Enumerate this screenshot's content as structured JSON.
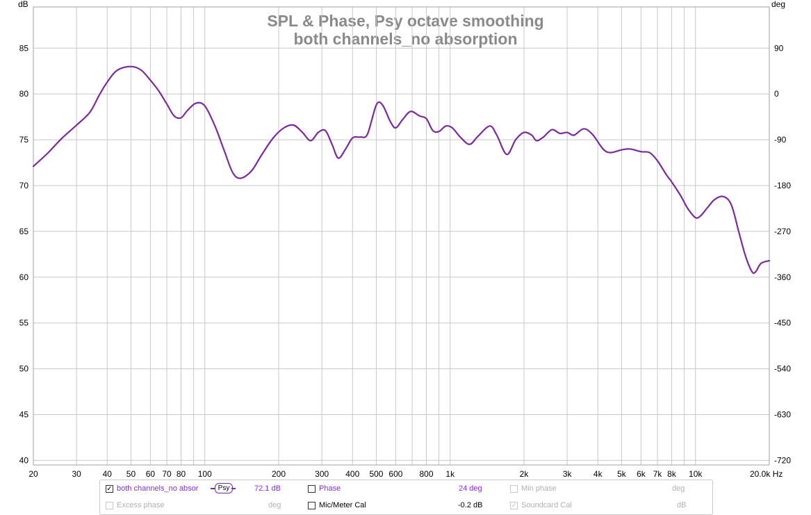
{
  "chart_data": {
    "type": "line",
    "title": "SPL & Phase, Psy octave smoothing",
    "subtitle": "both channels_no absorption",
    "ylabel_left": "dB",
    "ylabel_right": "deg",
    "xunit": "Hz",
    "xscale": "log",
    "xlim": [
      20,
      20000
    ],
    "ylim": [
      39.5,
      89.5
    ],
    "ylim_right": [
      -729,
      171
    ],
    "grid": true,
    "x_ticks": [
      {
        "v": 20,
        "label": "20"
      },
      {
        "v": 30,
        "label": "30"
      },
      {
        "v": 40,
        "label": "40"
      },
      {
        "v": 50,
        "label": "50"
      },
      {
        "v": 60,
        "label": "60"
      },
      {
        "v": 70,
        "label": "70"
      },
      {
        "v": 80,
        "label": "80"
      },
      {
        "v": 100,
        "label": "100"
      },
      {
        "v": 200,
        "label": "200"
      },
      {
        "v": 300,
        "label": "300"
      },
      {
        "v": 400,
        "label": "400"
      },
      {
        "v": 500,
        "label": "500"
      },
      {
        "v": 600,
        "label": "600"
      },
      {
        "v": 800,
        "label": "800"
      },
      {
        "v": 1000,
        "label": "1k"
      },
      {
        "v": 2000,
        "label": "2k"
      },
      {
        "v": 3000,
        "label": "3k"
      },
      {
        "v": 4000,
        "label": "4k"
      },
      {
        "v": 5000,
        "label": "5k"
      },
      {
        "v": 6000,
        "label": "6k"
      },
      {
        "v": 7000,
        "label": "7k"
      },
      {
        "v": 8000,
        "label": "8k"
      },
      {
        "v": 10000,
        "label": "10k"
      },
      {
        "v": 20000,
        "label": "20.0k Hz"
      }
    ],
    "x_minor": [
      90,
      700,
      900,
      9000
    ],
    "y_ticks": [
      40,
      45,
      50,
      55,
      60,
      65,
      70,
      75,
      80,
      85
    ],
    "y_right_ticks": [
      90,
      0,
      -90,
      -180,
      -270,
      -360,
      -450,
      -540,
      -630,
      -720
    ],
    "series": [
      {
        "name": "both channels_no absor",
        "color": "#7b2a9b",
        "points": [
          [
            20,
            72.1
          ],
          [
            23,
            73.6
          ],
          [
            26,
            75.1
          ],
          [
            30,
            76.6
          ],
          [
            34,
            78.0
          ],
          [
            37,
            79.8
          ],
          [
            40,
            81.3
          ],
          [
            44,
            82.6
          ],
          [
            50,
            83.0
          ],
          [
            55,
            82.6
          ],
          [
            60,
            81.5
          ],
          [
            65,
            80.3
          ],
          [
            70,
            78.9
          ],
          [
            75,
            77.6
          ],
          [
            80,
            77.4
          ],
          [
            85,
            78.2
          ],
          [
            92,
            79.0
          ],
          [
            100,
            78.7
          ],
          [
            110,
            76.5
          ],
          [
            120,
            73.8
          ],
          [
            130,
            71.4
          ],
          [
            140,
            70.8
          ],
          [
            155,
            71.6
          ],
          [
            170,
            73.3
          ],
          [
            190,
            75.2
          ],
          [
            210,
            76.3
          ],
          [
            230,
            76.6
          ],
          [
            250,
            75.8
          ],
          [
            270,
            74.9
          ],
          [
            290,
            75.8
          ],
          [
            310,
            76.0
          ],
          [
            330,
            74.5
          ],
          [
            350,
            73.0
          ],
          [
            375,
            74.0
          ],
          [
            400,
            75.2
          ],
          [
            430,
            75.3
          ],
          [
            460,
            75.6
          ],
          [
            500,
            78.8
          ],
          [
            530,
            78.8
          ],
          [
            570,
            77.0
          ],
          [
            600,
            76.3
          ],
          [
            640,
            77.2
          ],
          [
            690,
            78.1
          ],
          [
            750,
            77.6
          ],
          [
            800,
            77.3
          ],
          [
            850,
            76.0
          ],
          [
            900,
            75.9
          ],
          [
            960,
            76.5
          ],
          [
            1020,
            76.3
          ],
          [
            1100,
            75.3
          ],
          [
            1200,
            74.5
          ],
          [
            1300,
            75.4
          ],
          [
            1450,
            76.5
          ],
          [
            1550,
            75.5
          ],
          [
            1700,
            73.4
          ],
          [
            1850,
            75.0
          ],
          [
            2000,
            75.8
          ],
          [
            2150,
            75.5
          ],
          [
            2250,
            74.9
          ],
          [
            2400,
            75.3
          ],
          [
            2600,
            76.1
          ],
          [
            2800,
            75.7
          ],
          [
            3000,
            75.8
          ],
          [
            3200,
            75.5
          ],
          [
            3500,
            76.2
          ],
          [
            3800,
            75.6
          ],
          [
            4200,
            74.0
          ],
          [
            4500,
            73.6
          ],
          [
            5000,
            73.9
          ],
          [
            5400,
            74.0
          ],
          [
            6000,
            73.7
          ],
          [
            6500,
            73.6
          ],
          [
            7000,
            72.7
          ],
          [
            7600,
            71.2
          ],
          [
            8000,
            70.4
          ],
          [
            8700,
            68.9
          ],
          [
            9300,
            67.5
          ],
          [
            10000,
            66.5
          ],
          [
            10500,
            66.7
          ],
          [
            11200,
            67.6
          ],
          [
            12000,
            68.5
          ],
          [
            13000,
            68.8
          ],
          [
            14000,
            67.9
          ],
          [
            15000,
            65.0
          ],
          [
            16000,
            62.3
          ],
          [
            17000,
            60.6
          ],
          [
            17600,
            60.6
          ],
          [
            18500,
            61.5
          ],
          [
            20000,
            61.8
          ]
        ]
      }
    ]
  },
  "legend": {
    "trace_name": "both channels_no absor",
    "trace_checked": true,
    "smoothing_badge": "Psy",
    "spl_value": "72.1 dB",
    "phase_label": "Phase",
    "phase_value": "24 deg",
    "min_phase_label": "Min phase",
    "min_phase_unit": "deg",
    "excess_phase_label": "Excess phase",
    "excess_phase_unit": "deg",
    "mic_cal_label": "Mic/Meter Cal",
    "mic_cal_value": "-0.2 dB",
    "soundcard_cal_label": "Soundcard Cal",
    "soundcard_cal_unit": "dB",
    "check_glyph": "✓"
  },
  "colors": {
    "trace": "#7b2a9b",
    "grid": "#c8c8c8",
    "title": "#8a8a8a"
  }
}
